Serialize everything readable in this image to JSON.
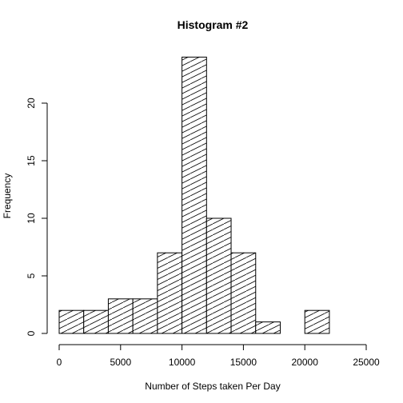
{
  "chart_data": {
    "type": "bar",
    "title": "Histogram #2",
    "xlabel": "Number of Steps taken Per Day",
    "ylabel": "Frequency",
    "bin_edges": [
      0,
      2000,
      4000,
      6000,
      8000,
      10000,
      12000,
      14000,
      16000,
      18000,
      20000,
      22000
    ],
    "values": [
      2,
      2,
      3,
      3,
      7,
      24,
      10,
      7,
      1,
      0,
      2
    ],
    "xlim": [
      0,
      25000
    ],
    "ylim": [
      0,
      25
    ],
    "x_ticks": [
      0,
      5000,
      10000,
      15000,
      20000,
      25000
    ],
    "y_ticks": [
      0,
      5,
      10,
      15,
      20
    ],
    "fill_pattern": "diagonal-hatch",
    "bar_color": "#000000",
    "grid": false,
    "legend": "none"
  }
}
